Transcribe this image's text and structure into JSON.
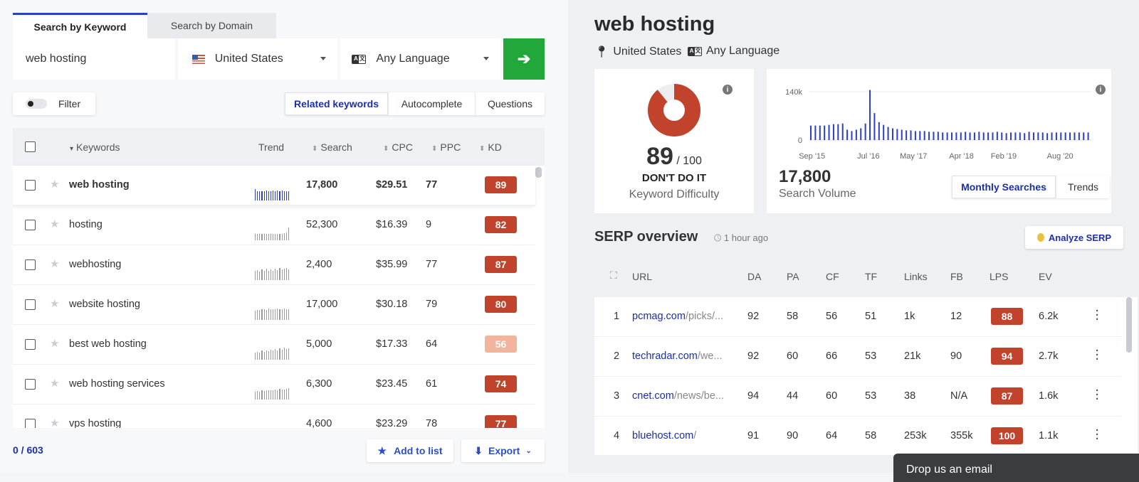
{
  "tabs": {
    "by_keyword": "Search by Keyword",
    "by_domain": "Search by Domain"
  },
  "search": {
    "keyword_value": "web hosting",
    "country": "United States",
    "language": "Any Language",
    "go_icon": "arrow-right-icon"
  },
  "filter": {
    "label": "Filter"
  },
  "mode_tabs": {
    "related": "Related keywords",
    "autocomplete": "Autocomplete",
    "questions": "Questions"
  },
  "table": {
    "headers": {
      "keywords": "Keywords",
      "trend": "Trend",
      "search": "Search",
      "cpc": "CPC",
      "ppc": "PPC",
      "kd": "KD"
    },
    "rows": [
      {
        "keyword": "web hosting",
        "search": "17,800",
        "cpc": "$29.51",
        "ppc": "77",
        "kd": "89",
        "kd_color": "#c2432b",
        "trend": [
          0.9,
          0.75,
          0.7,
          0.75,
          0.7,
          0.8,
          0.75,
          0.7,
          0.8,
          0.75,
          0.8,
          0.75,
          0.8,
          0.75,
          0.75,
          0.75
        ]
      },
      {
        "keyword": "hosting",
        "search": "52,300",
        "cpc": "$16.39",
        "ppc": "9",
        "kd": "82",
        "kd_color": "#c2432b",
        "trend": [
          0.5,
          0.5,
          0.5,
          0.5,
          0.5,
          0.5,
          0.5,
          0.5,
          0.5,
          0.5,
          0.5,
          0.5,
          0.5,
          0.55,
          0.6,
          1.0
        ]
      },
      {
        "keyword": "webhosting",
        "search": "2,400",
        "cpc": "$35.99",
        "ppc": "77",
        "kd": "87",
        "kd_color": "#c2432b",
        "trend": [
          0.7,
          0.8,
          0.65,
          0.85,
          0.7,
          0.9,
          0.75,
          0.85,
          0.7,
          0.9,
          0.8,
          0.95,
          0.85,
          0.9,
          0.95,
          0.85
        ]
      },
      {
        "keyword": "website hosting",
        "search": "17,000",
        "cpc": "$30.18",
        "ppc": "79",
        "kd": "80",
        "kd_color": "#c2432b",
        "trend": [
          0.75,
          0.8,
          0.8,
          0.85,
          0.85,
          0.8,
          0.9,
          0.85,
          0.85,
          0.85,
          0.9,
          0.85,
          0.85,
          0.9,
          0.85,
          0.85
        ]
      },
      {
        "keyword": "best web hosting",
        "search": "5,000",
        "cpc": "$17.33",
        "ppc": "64",
        "kd": "56",
        "kd_color": "#f2b49c",
        "trend": [
          0.55,
          0.6,
          0.55,
          0.7,
          0.6,
          0.75,
          0.65,
          0.8,
          0.7,
          0.85,
          0.75,
          0.9,
          0.8,
          0.95,
          0.85,
          0.9
        ]
      },
      {
        "keyword": "web hosting services",
        "search": "6,300",
        "cpc": "$23.45",
        "ppc": "61",
        "kd": "74",
        "kd_color": "#c2432b",
        "trend": [
          0.6,
          0.65,
          0.6,
          0.7,
          0.65,
          0.75,
          0.7,
          0.7,
          0.75,
          0.8,
          0.75,
          0.85,
          0.8,
          0.8,
          0.85,
          0.9
        ]
      },
      {
        "keyword": "vps hosting",
        "search": "4,600",
        "cpc": "$23.29",
        "ppc": "78",
        "kd": "77",
        "kd_color": "#c2432b",
        "trend": [
          0.6,
          0.6,
          0.6,
          0.6,
          0.6,
          0.6,
          0.6,
          0.6,
          0.6,
          0.6,
          0.6,
          0.6,
          0.6,
          0.6,
          0.6,
          0.6
        ]
      }
    ]
  },
  "footer": {
    "count": "0 / 603",
    "add_to_list": "Add to list",
    "export": "Export"
  },
  "keyword_title": "web hosting",
  "location": {
    "country": "United States",
    "language": "Any Language"
  },
  "difficulty": {
    "score": "89",
    "max": "/ 100",
    "verdict": "DON'T DO IT",
    "label": "Keyword Difficulty",
    "fill_fraction": 0.89,
    "color": "#c2432b"
  },
  "volume": {
    "value": "17,800",
    "label": "Search Volume",
    "btn_monthly": "Monthly Searches",
    "btn_trends": "Trends"
  },
  "chart_data": {
    "type": "bar",
    "y_ticks": [
      "140k",
      "0"
    ],
    "x_ticks": [
      "Sep '15",
      "Jul '16",
      "May '17",
      "Apr '18",
      "Feb '19",
      "Aug '20"
    ],
    "ylim": [
      0,
      140000
    ],
    "values": [
      42000,
      42000,
      42000,
      42000,
      44000,
      46000,
      46000,
      48000,
      30000,
      26000,
      30000,
      34000,
      48000,
      145000,
      78000,
      52000,
      44000,
      38000,
      34000,
      32000,
      30000,
      28000,
      28000,
      26000,
      26000,
      26000,
      24000,
      24000,
      24000,
      22000,
      22000,
      22000,
      22000,
      22000,
      24000,
      22000,
      22000,
      24000,
      22000,
      22000,
      22000,
      24000,
      22000,
      20000,
      22000,
      22000,
      22000,
      20000,
      24000,
      22000,
      22000,
      22000,
      20000,
      22000,
      22000,
      22000,
      22000,
      22000,
      22000,
      22000,
      22000,
      22000
    ]
  },
  "serp": {
    "title": "SERP overview",
    "time": "1 hour ago",
    "analyze_btn": "Analyze SERP",
    "headers": {
      "url": "URL",
      "da": "DA",
      "pa": "PA",
      "cf": "CF",
      "tf": "TF",
      "links": "Links",
      "fb": "FB",
      "lps": "LPS",
      "ev": "EV"
    },
    "rows": [
      {
        "n": "1",
        "domain": "pcmag.com",
        "path": "/picks/...",
        "da": "92",
        "pa": "58",
        "cf": "56",
        "tf": "51",
        "links": "1k",
        "fb": "12",
        "lps": "88",
        "ev": "6.2k"
      },
      {
        "n": "2",
        "domain": "techradar.com",
        "path": "/we...",
        "da": "92",
        "pa": "60",
        "cf": "66",
        "tf": "53",
        "links": "21k",
        "fb": "90",
        "lps": "94",
        "ev": "2.7k"
      },
      {
        "n": "3",
        "domain": "cnet.com",
        "path": "/news/be...",
        "da": "94",
        "pa": "44",
        "cf": "60",
        "tf": "53",
        "links": "38",
        "fb": "N/A",
        "lps": "87",
        "ev": "1.6k"
      },
      {
        "n": "4",
        "domain": "bluehost.com",
        "path": "/",
        "da": "91",
        "pa": "90",
        "cf": "64",
        "tf": "58",
        "links": "253k",
        "fb": "355k",
        "lps": "100",
        "ev": "1.1k"
      }
    ]
  },
  "toast": {
    "text": "Drop us an email"
  }
}
